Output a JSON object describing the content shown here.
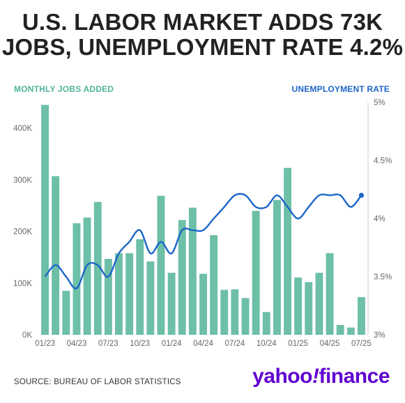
{
  "title_line1": "U.S. LABOR MARKET ADDS 73K",
  "title_line2": "JOBS, UNEMPLOYMENT RATE 4.2%",
  "source": "SOURCE: BUREAU OF LABOR STATISTICS",
  "logo": {
    "part1": "yahoo",
    "part2": "!",
    "part3": "finance"
  },
  "colors": {
    "bars": "#6dbfa8",
    "line": "#1c66c9",
    "left_label": "#4fb39a",
    "right_label": "#1c66c9",
    "logo": "#5f01d1"
  },
  "chart_data": {
    "type": "bar+line",
    "left_axis_label": "MONTHLY JOBS ADDED",
    "right_axis_label": "UNEMPLOYMENT RATE",
    "y_left_ticks": [
      "0K",
      "100K",
      "200K",
      "300K",
      "400K"
    ],
    "y_left_range": [
      0,
      450
    ],
    "y_right_ticks": [
      "3%",
      "3.5%",
      "4%",
      "4.5%",
      "5%"
    ],
    "y_right_range": [
      3,
      5
    ],
    "x_tick_labels": [
      "01/23",
      "04/23",
      "07/23",
      "10/23",
      "01/24",
      "04/24",
      "07/24",
      "10/24",
      "01/25",
      "04/25",
      "07/25"
    ],
    "categories": [
      "01/23",
      "02/23",
      "03/23",
      "04/23",
      "05/23",
      "06/23",
      "07/23",
      "08/23",
      "09/23",
      "10/23",
      "11/23",
      "12/23",
      "01/24",
      "02/24",
      "03/24",
      "04/24",
      "05/24",
      "06/24",
      "07/24",
      "08/24",
      "09/24",
      "10/24",
      "11/24",
      "12/24",
      "01/25",
      "02/25",
      "03/25",
      "04/25",
      "05/25",
      "06/25",
      "07/25"
    ],
    "series": [
      {
        "name": "MONTHLY JOBS ADDED",
        "kind": "bar",
        "unit": "K",
        "values": [
          445,
          307,
          85,
          216,
          227,
          257,
          147,
          158,
          158,
          185,
          142,
          269,
          120,
          222,
          246,
          118,
          193,
          87,
          88,
          71,
          240,
          44,
          261,
          323,
          111,
          102,
          120,
          158,
          19,
          14,
          73
        ]
      },
      {
        "name": "UNEMPLOYMENT RATE",
        "kind": "line",
        "unit": "%",
        "values": [
          3.5,
          3.6,
          3.5,
          3.4,
          3.6,
          3.6,
          3.5,
          3.7,
          3.8,
          3.9,
          3.7,
          3.8,
          3.7,
          3.9,
          3.9,
          3.9,
          4.0,
          4.1,
          4.2,
          4.2,
          4.1,
          4.1,
          4.2,
          4.1,
          4.0,
          4.1,
          4.2,
          4.2,
          4.2,
          4.1,
          4.2
        ]
      }
    ]
  }
}
